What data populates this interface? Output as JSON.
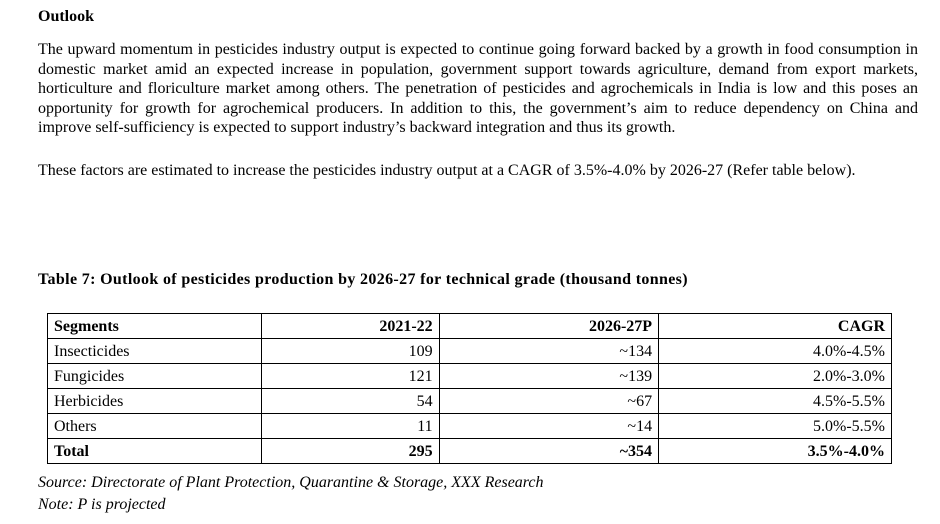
{
  "heading": "Outlook",
  "paragraphs": {
    "p1": "The upward momentum in pesticides industry output is expected to continue going forward backed by a growth in food consumption in domestic market amid an expected increase in population, government support towards agriculture, demand from export markets, horticulture and floriculture market among others. The penetration of pesticides and agrochemicals in India is low and this poses an opportunity for growth for agrochemical producers. In addition to this, the government’s aim to reduce dependency on China and improve self-sufficiency is expected to support industry’s backward integration and thus its growth.",
    "p2": "These factors are estimated to increase the pesticides industry output at a CAGR of 3.5%-4.0% by 2026-27 (Refer table below)."
  },
  "table": {
    "caption": "Table 7: Outlook of pesticides production by 2026-27 for technical grade (thousand tonnes)",
    "headers": [
      "Segments",
      "2021-22",
      "2026-27P",
      "CAGR"
    ],
    "rows": [
      [
        "Insecticides",
        "109",
        "~134",
        "4.0%-4.5%"
      ],
      [
        "Fungicides",
        "121",
        "~139",
        "2.0%-3.0%"
      ],
      [
        "Herbicides",
        "54",
        "~67",
        "4.5%-5.5%"
      ],
      [
        "Others",
        "11",
        "~14",
        "5.0%-5.5%"
      ]
    ],
    "total": [
      "Total",
      "295",
      "~354",
      "3.5%-4.0%"
    ]
  },
  "source": "Source: Directorate of Plant Protection, Quarantine & Storage, XXX Research",
  "note": "Note: P is projected"
}
